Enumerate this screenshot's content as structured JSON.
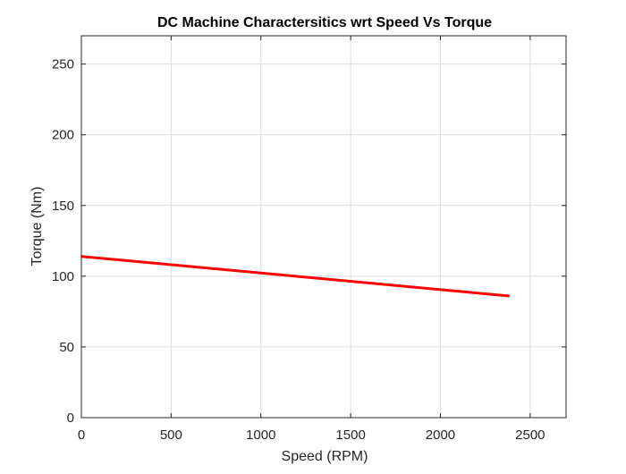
{
  "chart_data": {
    "type": "line",
    "title": "DC Machine Charactersitics wrt Speed Vs Torque",
    "xlabel": "Speed (RPM)",
    "ylabel": "Torque (Nm)",
    "xlim": [
      0,
      2700
    ],
    "ylim": [
      0,
      270
    ],
    "xticks": [
      0,
      500,
      1000,
      1500,
      2000,
      2500
    ],
    "yticks": [
      0,
      50,
      100,
      150,
      200,
      250
    ],
    "xtick_labels": [
      "0",
      "500",
      "1000",
      "1500",
      "2000",
      "2500"
    ],
    "ytick_labels": [
      "0",
      "50",
      "100",
      "150",
      "200",
      "250"
    ],
    "grid": true,
    "series": [
      {
        "color": "#ff0000",
        "x": [
          0,
          2385
        ],
        "y": [
          114,
          86
        ]
      }
    ]
  }
}
